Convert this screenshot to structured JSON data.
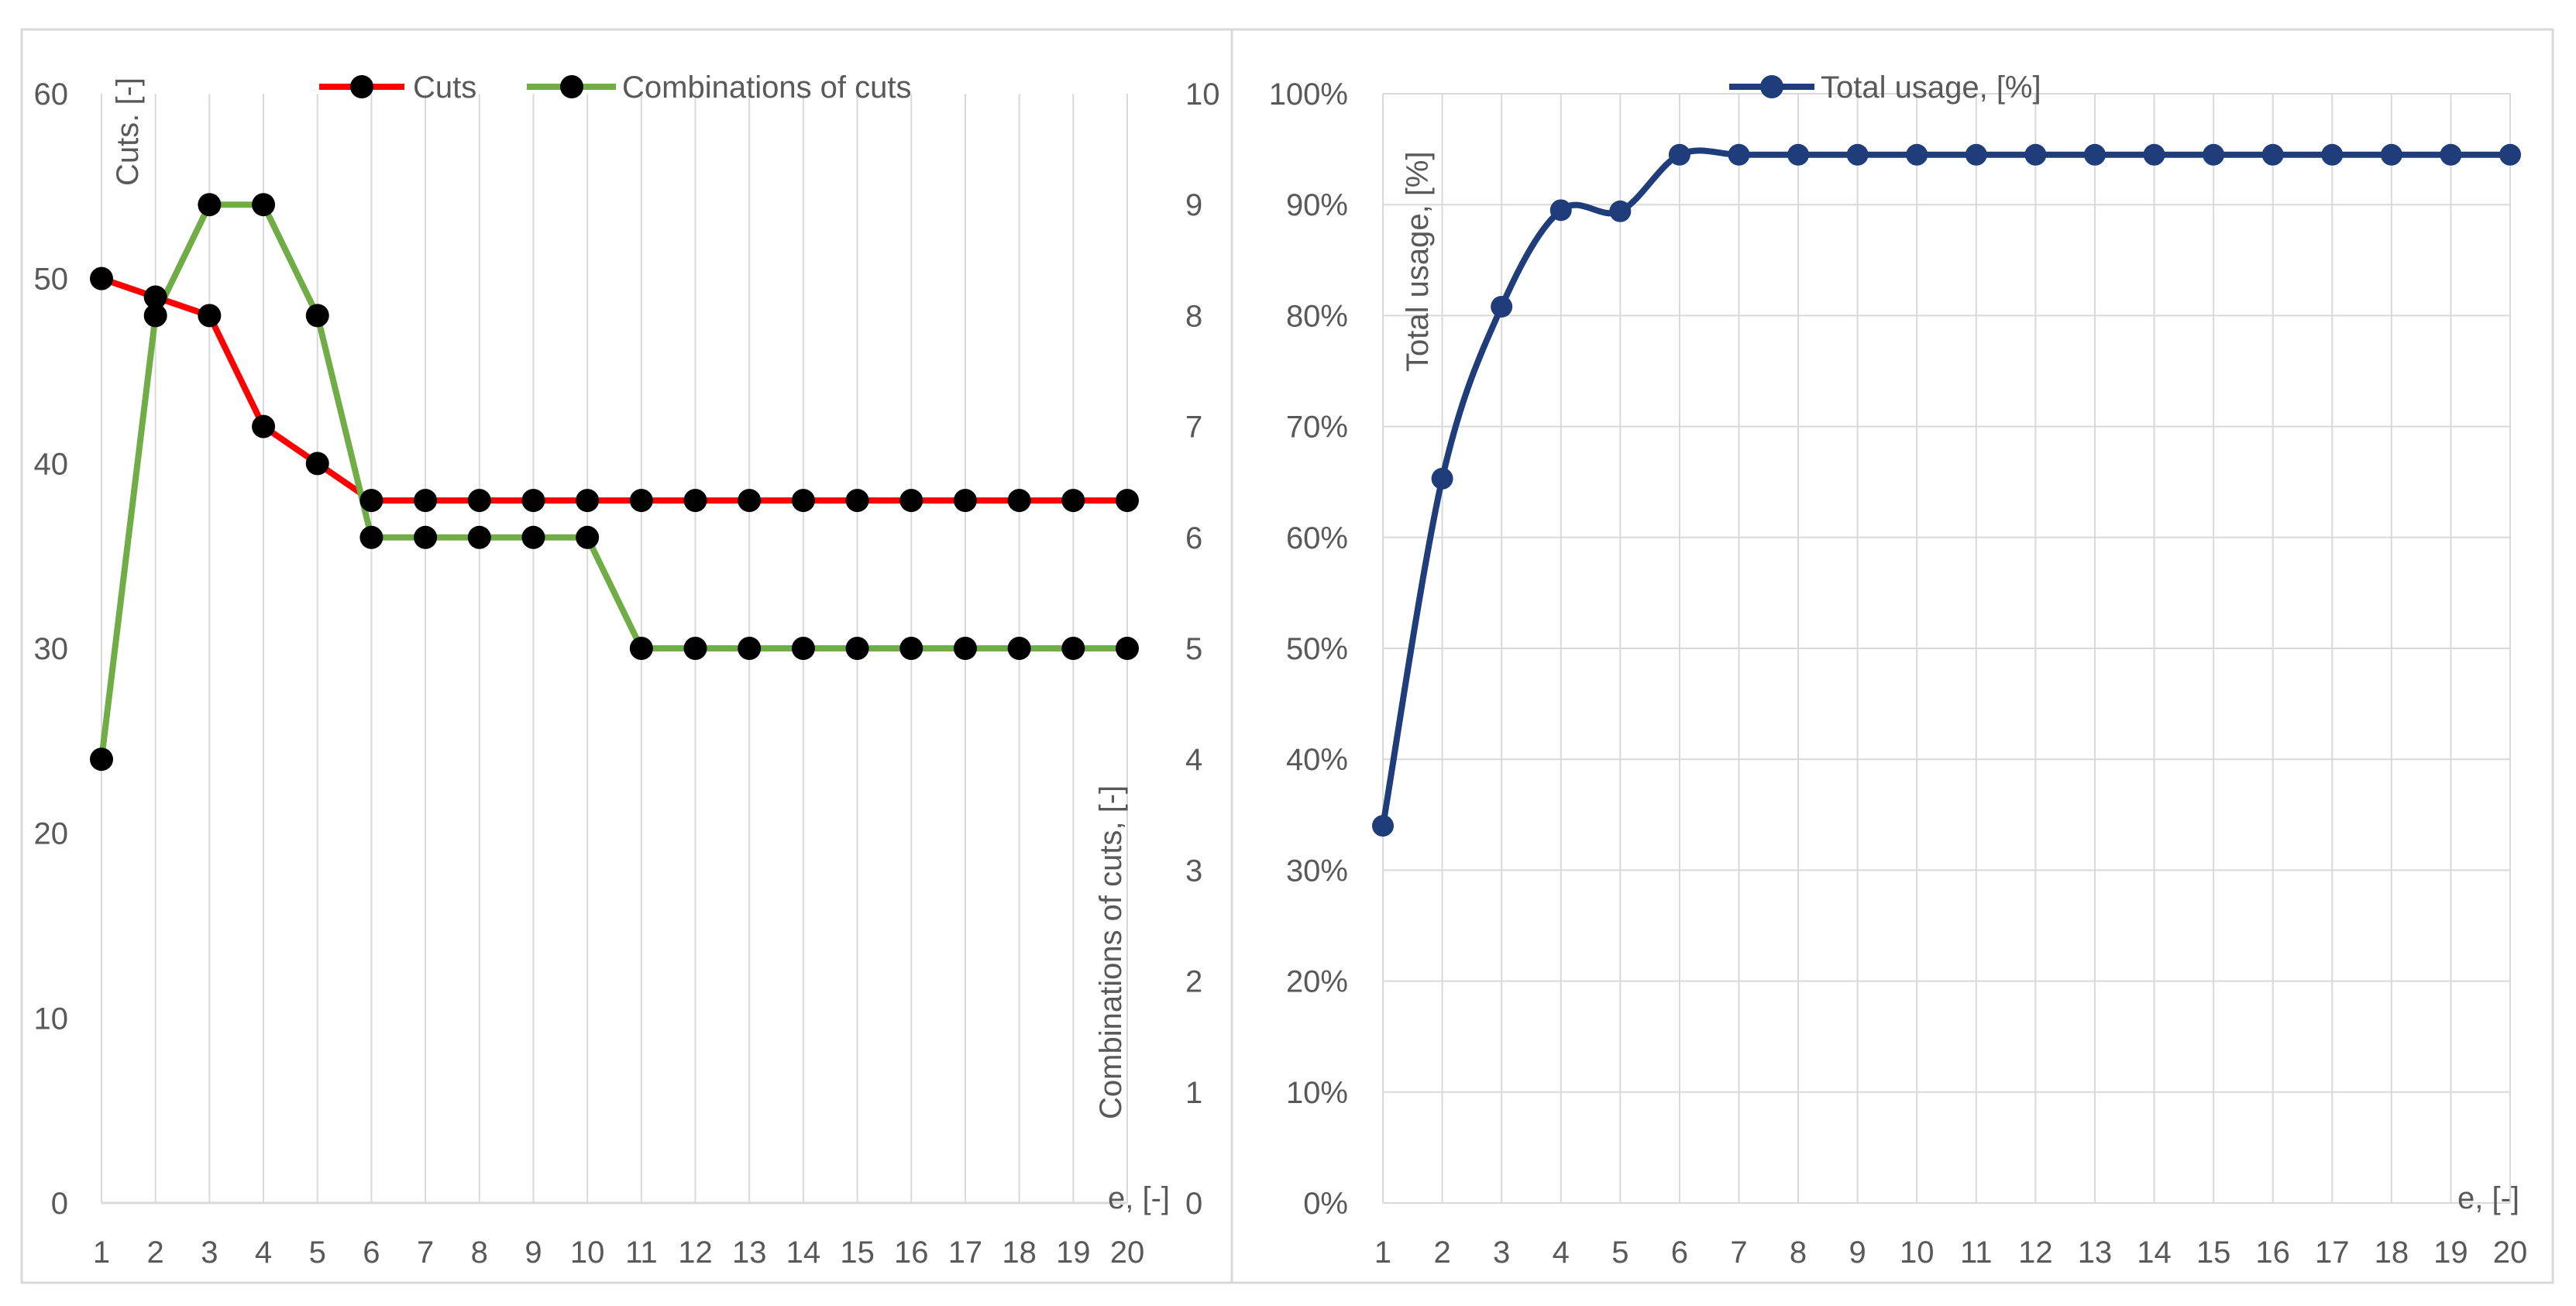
{
  "chart_data": [
    {
      "type": "line",
      "title": "",
      "xlabel": "e, [-]",
      "ylabel": "Cuts. [-]",
      "y2label": "Combinations of cuts, [-]",
      "x": [
        1,
        2,
        3,
        4,
        5,
        6,
        7,
        8,
        9,
        10,
        11,
        12,
        13,
        14,
        15,
        16,
        17,
        18,
        19,
        20
      ],
      "ylim": [
        0,
        60
      ],
      "y_ticks": [
        0,
        10,
        20,
        30,
        40,
        50,
        60
      ],
      "y2lim": [
        0,
        10
      ],
      "y2_ticks": [
        0,
        1,
        2,
        3,
        4,
        5,
        6,
        7,
        8,
        9,
        10
      ],
      "grid": "vertical",
      "legend_position": "top-center",
      "series": [
        {
          "name": "Cuts",
          "axis": "left",
          "color": "#ff0000",
          "marker_color": "#000000",
          "values": [
            50,
            49,
            48,
            42,
            40,
            38,
            38,
            38,
            38,
            38,
            38,
            38,
            38,
            38,
            38,
            38,
            38,
            38,
            38,
            38
          ]
        },
        {
          "name": "Combinations of cuts",
          "axis": "right",
          "color": "#70ad47",
          "marker_color": "#000000",
          "values": [
            4,
            8,
            9,
            9,
            8,
            6,
            6,
            6,
            6,
            6,
            5,
            5,
            5,
            5,
            5,
            5,
            5,
            5,
            5,
            5
          ]
        }
      ]
    },
    {
      "type": "line",
      "title": "",
      "xlabel": "e, [-]",
      "ylabel": "Total usage, [%]",
      "x": [
        1,
        2,
        3,
        4,
        5,
        6,
        7,
        8,
        9,
        10,
        11,
        12,
        13,
        14,
        15,
        16,
        17,
        18,
        19,
        20
      ],
      "ylim": [
        0,
        100
      ],
      "y_ticks": [
        0,
        10,
        20,
        30,
        40,
        50,
        60,
        70,
        80,
        90,
        100
      ],
      "y_tick_suffix": "%",
      "grid": "both",
      "legend_position": "top-center",
      "smooth": true,
      "series": [
        {
          "name": "Total usage, [%]",
          "color": "#1f3d7a",
          "marker_color": "#1f3d7a",
          "values": [
            34,
            65.3,
            80.8,
            89.5,
            89.4,
            94.5,
            94.5,
            94.5,
            94.5,
            94.5,
            94.5,
            94.5,
            94.5,
            94.5,
            94.5,
            94.5,
            94.5,
            94.5,
            94.5,
            94.5
          ]
        }
      ]
    }
  ]
}
